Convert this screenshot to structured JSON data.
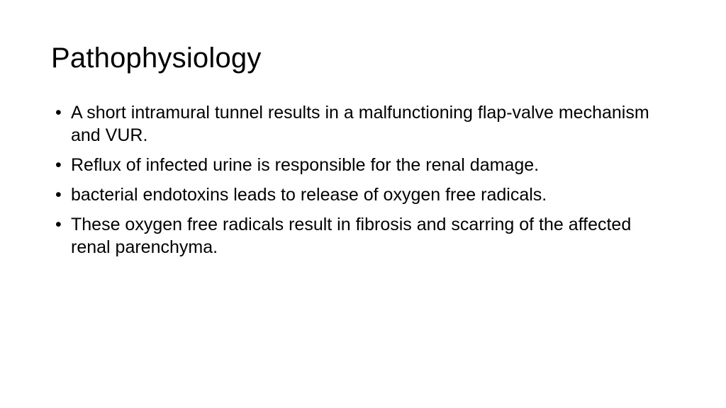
{
  "slide": {
    "background_color": "#ffffff",
    "text_color": "#000000",
    "title": "Pathophysiology",
    "title_fontsize_pt": 40,
    "title_weight": "light",
    "body_fontsize_pt": 25,
    "body_weight": "regular",
    "bullets": [
      "A short intramural tunnel results in a malfunctioning flap-valve mechanism and VUR.",
      " Reflux of infected urine is responsible for the renal damage.",
      "bacterial endotoxins leads to release of oxygen free radicals.",
      "These oxygen free radicals result in fibrosis and scarring of the affected renal parenchyma."
    ]
  }
}
